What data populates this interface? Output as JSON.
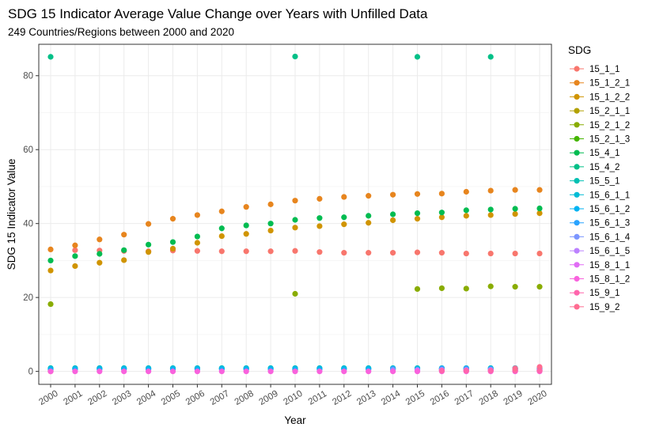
{
  "chart_data": {
    "type": "scatter",
    "title": "SDG 15 Indicator Average Value Change over Years with Unfilled Data",
    "subtitle": "249 Countries/Regions between 2000 and 2020",
    "xlabel": "Year",
    "ylabel": "SDG 15 Indicator Value",
    "legend_title": "SDG",
    "legend_position": "right",
    "grid": true,
    "x": [
      "2000",
      "2001",
      "2002",
      "2003",
      "2004",
      "2005",
      "2006",
      "2007",
      "2008",
      "2009",
      "2010",
      "2011",
      "2012",
      "2013",
      "2014",
      "2015",
      "2016",
      "2017",
      "2018",
      "2019",
      "2020"
    ],
    "xlim": [
      2000,
      2020
    ],
    "ylim": [
      -3.5,
      88.5
    ],
    "yticks": [
      0,
      20,
      40,
      60,
      80
    ],
    "series": [
      {
        "name": "15_1_1",
        "color": "#F8766D",
        "points": [
          [
            2000,
            0
          ],
          [
            2001,
            32.8
          ],
          [
            2002,
            32.7
          ],
          [
            2003,
            32.6
          ],
          [
            2004,
            32.5
          ],
          [
            2005,
            32.7
          ],
          [
            2006,
            32.6
          ],
          [
            2007,
            32.5
          ],
          [
            2008,
            32.5
          ],
          [
            2009,
            32.5
          ],
          [
            2010,
            32.6
          ],
          [
            2011,
            32.3
          ],
          [
            2012,
            32.1
          ],
          [
            2013,
            32.1
          ],
          [
            2014,
            32.1
          ],
          [
            2015,
            32.2
          ],
          [
            2016,
            32.1
          ],
          [
            2017,
            31.9
          ],
          [
            2018,
            31.9
          ],
          [
            2019,
            31.9
          ],
          [
            2020,
            31.9
          ]
        ]
      },
      {
        "name": "15_1_2_1",
        "color": "#E7851E",
        "points": [
          [
            2000,
            33.0
          ],
          [
            2001,
            34.1
          ],
          [
            2002,
            35.7
          ],
          [
            2003,
            37.0
          ],
          [
            2004,
            39.9
          ],
          [
            2005,
            41.3
          ],
          [
            2006,
            42.3
          ],
          [
            2007,
            43.3
          ],
          [
            2008,
            44.5
          ],
          [
            2009,
            45.2
          ],
          [
            2010,
            46.2
          ],
          [
            2011,
            46.7
          ],
          [
            2012,
            47.2
          ],
          [
            2013,
            47.5
          ],
          [
            2014,
            47.8
          ],
          [
            2015,
            48.0
          ],
          [
            2016,
            48.1
          ],
          [
            2017,
            48.6
          ],
          [
            2018,
            48.9
          ],
          [
            2019,
            49.1
          ],
          [
            2020,
            49.1
          ]
        ]
      },
      {
        "name": "15_1_2_2",
        "color": "#D09400",
        "points": [
          [
            2000,
            27.3
          ],
          [
            2001,
            28.5
          ],
          [
            2002,
            29.4
          ],
          [
            2003,
            30.1
          ],
          [
            2004,
            32.3
          ],
          [
            2005,
            33.2
          ],
          [
            2006,
            34.8
          ],
          [
            2007,
            36.6
          ],
          [
            2008,
            37.2
          ],
          [
            2009,
            38.1
          ],
          [
            2010,
            38.9
          ],
          [
            2011,
            39.3
          ],
          [
            2012,
            39.8
          ],
          [
            2013,
            40.2
          ],
          [
            2014,
            40.9
          ],
          [
            2015,
            41.3
          ],
          [
            2016,
            41.7
          ],
          [
            2017,
            42.1
          ],
          [
            2018,
            42.3
          ],
          [
            2019,
            42.6
          ],
          [
            2020,
            42.8
          ]
        ]
      },
      {
        "name": "15_2_1_1",
        "color": "#B2A100",
        "points": [
          [
            2000,
            0.1
          ],
          [
            2010,
            0.2
          ],
          [
            2020,
            0.3
          ]
        ]
      },
      {
        "name": "15_2_1_2",
        "color": "#89AC00",
        "points": [
          [
            2000,
            18.2
          ],
          [
            2010,
            21.0
          ],
          [
            2015,
            22.3
          ],
          [
            2016,
            22.5
          ],
          [
            2017,
            22.4
          ],
          [
            2018,
            23.0
          ],
          [
            2019,
            22.9
          ],
          [
            2020,
            22.9
          ]
        ]
      },
      {
        "name": "15_2_1_3",
        "color": "#45B500",
        "points": [
          [
            2010,
            0.5
          ],
          [
            2020,
            0.5
          ]
        ]
      },
      {
        "name": "15_4_1",
        "color": "#00BC51",
        "points": [
          [
            2000,
            30.0
          ],
          [
            2001,
            31.2
          ],
          [
            2002,
            31.8
          ],
          [
            2003,
            32.8
          ],
          [
            2004,
            34.3
          ],
          [
            2005,
            35.0
          ],
          [
            2006,
            36.5
          ],
          [
            2007,
            38.7
          ],
          [
            2008,
            39.5
          ],
          [
            2009,
            40.0
          ],
          [
            2010,
            41.0
          ],
          [
            2011,
            41.5
          ],
          [
            2012,
            41.7
          ],
          [
            2013,
            42.1
          ],
          [
            2014,
            42.5
          ],
          [
            2015,
            42.8
          ],
          [
            2016,
            43.0
          ],
          [
            2017,
            43.6
          ],
          [
            2018,
            43.8
          ],
          [
            2019,
            44.0
          ],
          [
            2020,
            44.1
          ]
        ]
      },
      {
        "name": "15_4_2",
        "color": "#00C087",
        "points": [
          [
            2000,
            85.1
          ],
          [
            2010,
            85.2
          ],
          [
            2015,
            85.1
          ],
          [
            2018,
            85.1
          ]
        ]
      },
      {
        "name": "15_5_1",
        "color": "#00C0B2",
        "points": [
          [
            2000,
            0.9
          ],
          [
            2001,
            0.9
          ],
          [
            2002,
            0.9
          ],
          [
            2003,
            0.9
          ],
          [
            2004,
            0.9
          ],
          [
            2005,
            0.9
          ],
          [
            2006,
            0.9
          ],
          [
            2007,
            0.9
          ],
          [
            2008,
            0.9
          ],
          [
            2009,
            0.9
          ],
          [
            2010,
            0.9
          ],
          [
            2011,
            0.9
          ],
          [
            2012,
            0.9
          ],
          [
            2013,
            0.9
          ],
          [
            2014,
            0.9
          ],
          [
            2015,
            0.9
          ],
          [
            2016,
            0.9
          ],
          [
            2017,
            0.9
          ],
          [
            2018,
            0.9
          ],
          [
            2019,
            0.9
          ],
          [
            2020,
            0.9
          ]
        ]
      },
      {
        "name": "15_6_1_1",
        "color": "#00BCD6",
        "points": [
          [
            2000,
            0.7
          ],
          [
            2001,
            0.8
          ],
          [
            2002,
            0.8
          ],
          [
            2003,
            0.8
          ],
          [
            2004,
            0.8
          ],
          [
            2005,
            0.8
          ],
          [
            2006,
            0.8
          ],
          [
            2007,
            0.8
          ],
          [
            2008,
            0.8
          ],
          [
            2009,
            0.8
          ],
          [
            2010,
            0.8
          ],
          [
            2011,
            0.8
          ],
          [
            2012,
            0.8
          ],
          [
            2013,
            0.8
          ],
          [
            2014,
            0.8
          ],
          [
            2015,
            0.8
          ],
          [
            2016,
            0.8
          ],
          [
            2017,
            0.8
          ],
          [
            2018,
            0.8
          ],
          [
            2019,
            0.8
          ],
          [
            2020,
            0.8
          ]
        ]
      },
      {
        "name": "15_6_1_2",
        "color": "#00B3F2",
        "points": [
          [
            2000,
            0.6
          ],
          [
            2001,
            0.6
          ],
          [
            2002,
            0.6
          ],
          [
            2003,
            0.6
          ],
          [
            2004,
            0.6
          ],
          [
            2005,
            0.6
          ],
          [
            2006,
            0.6
          ],
          [
            2007,
            0.6
          ],
          [
            2008,
            0.6
          ],
          [
            2009,
            0.6
          ],
          [
            2010,
            0.6
          ],
          [
            2011,
            0.6
          ],
          [
            2012,
            0.6
          ],
          [
            2013,
            0.6
          ],
          [
            2014,
            0.6
          ],
          [
            2015,
            0.6
          ],
          [
            2016,
            0.6
          ],
          [
            2017,
            0.6
          ],
          [
            2018,
            0.6
          ],
          [
            2019,
            0.6
          ],
          [
            2020,
            0.6
          ]
        ]
      },
      {
        "name": "15_6_1_3",
        "color": "#29A3FF",
        "points": [
          [
            2014,
            0.7
          ],
          [
            2016,
            0.8
          ],
          [
            2017,
            0.8
          ],
          [
            2018,
            0.7
          ],
          [
            2019,
            0.8
          ],
          [
            2020,
            0.8
          ]
        ]
      },
      {
        "name": "15_6_1_4",
        "color": "#7C96FF",
        "points": [
          [
            2014,
            0.4
          ],
          [
            2015,
            0.4
          ],
          [
            2016,
            0.5
          ],
          [
            2017,
            0.5
          ],
          [
            2018,
            0.5
          ],
          [
            2019,
            0.5
          ],
          [
            2020,
            0.5
          ]
        ]
      },
      {
        "name": "15_6_1_5",
        "color": "#BC81FF",
        "points": [
          [
            2015,
            0.3
          ],
          [
            2016,
            0.3
          ],
          [
            2017,
            0.3
          ],
          [
            2018,
            0.3
          ],
          [
            2019,
            0.3
          ],
          [
            2020,
            0.3
          ]
        ]
      },
      {
        "name": "15_8_1_1",
        "color": "#E06CF5",
        "points": [
          [
            2016,
            0.2
          ],
          [
            2017,
            0.2
          ],
          [
            2018,
            0.2
          ],
          [
            2019,
            0.2
          ],
          [
            2020,
            0.2
          ]
        ]
      },
      {
        "name": "15_8_1_2",
        "color": "#F962DD",
        "points": [
          [
            2000,
            0.0
          ],
          [
            2001,
            0.0
          ],
          [
            2002,
            0.0
          ],
          [
            2003,
            0.0
          ],
          [
            2004,
            0.0
          ],
          [
            2005,
            0.0
          ],
          [
            2006,
            0.0
          ],
          [
            2007,
            0.0
          ],
          [
            2008,
            0.0
          ],
          [
            2009,
            0.0
          ],
          [
            2010,
            0.0
          ],
          [
            2011,
            0.0
          ],
          [
            2012,
            0.0
          ],
          [
            2013,
            0.0
          ],
          [
            2014,
            0.0
          ],
          [
            2015,
            0.0
          ],
          [
            2016,
            0.0
          ],
          [
            2017,
            0.0
          ],
          [
            2018,
            0.0
          ],
          [
            2019,
            0.0
          ],
          [
            2020,
            0.0
          ]
        ]
      },
      {
        "name": "15_9_1",
        "color": "#FF65AC",
        "points": [
          [
            2016,
            0.2
          ],
          [
            2017,
            0.2
          ],
          [
            2018,
            0.2
          ],
          [
            2019,
            0.2
          ],
          [
            2020,
            0.2
          ]
        ]
      },
      {
        "name": "15_9_2",
        "color": "#FF6C91",
        "points": [
          [
            2019,
            0.8
          ],
          [
            2020,
            1.2
          ]
        ]
      }
    ]
  }
}
